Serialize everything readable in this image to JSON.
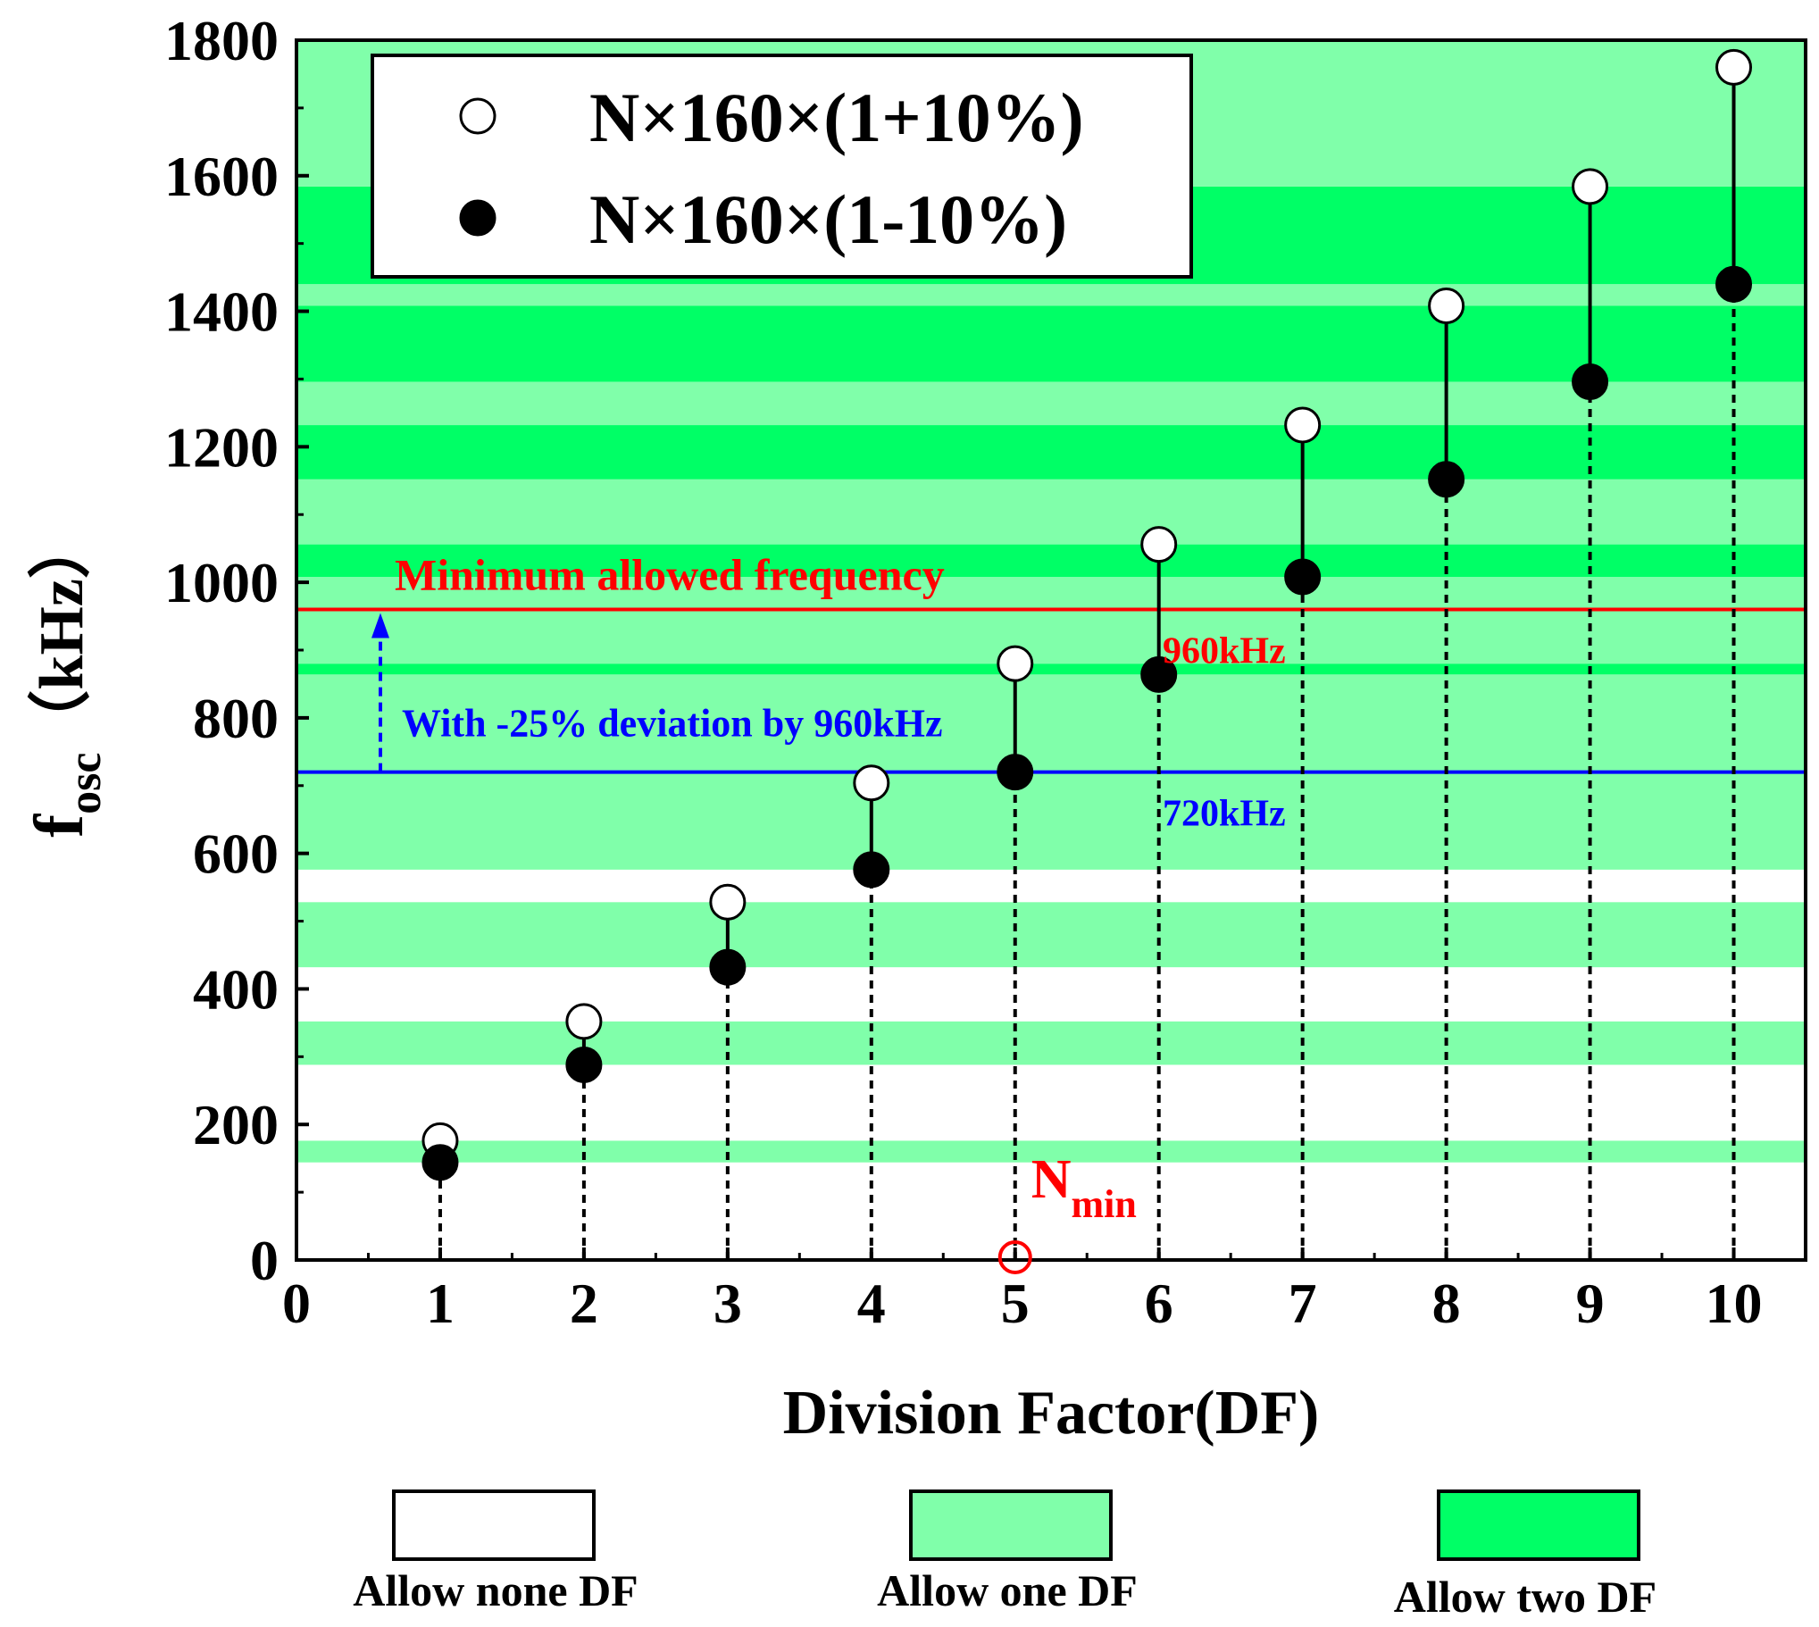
{
  "chart_data": {
    "type": "scatter",
    "title": "",
    "xlabel": "Division Factor(DF)",
    "ylabel_main": "f",
    "ylabel_sub": "osc",
    "ylabel_unit": "（kHz）",
    "xlim": [
      0,
      10.5
    ],
    "ylim": [
      0,
      1800
    ],
    "xticks": [
      0,
      1,
      2,
      3,
      4,
      5,
      6,
      7,
      8,
      9,
      10
    ],
    "yticks": [
      0,
      200,
      400,
      600,
      800,
      1000,
      1200,
      1400,
      1600,
      1800
    ],
    "x": [
      1,
      2,
      3,
      4,
      5,
      6,
      7,
      8,
      9,
      10
    ],
    "series": [
      {
        "name": "N×160×(1+10%)",
        "marker": "open-circle",
        "values": [
          176,
          352,
          528,
          704,
          880,
          1056,
          1232,
          1408,
          1584,
          1760
        ]
      },
      {
        "name": "N×160×(1-10%)",
        "marker": "filled-circle",
        "values": [
          144,
          288,
          432,
          576,
          720,
          864,
          1008,
          1152,
          1296,
          1440
        ]
      }
    ],
    "bands": [
      {
        "from": 144,
        "to": 176,
        "level": "one"
      },
      {
        "from": 288,
        "to": 352,
        "level": "one"
      },
      {
        "from": 432,
        "to": 528,
        "level": "one"
      },
      {
        "from": 576,
        "to": 720,
        "level": "one"
      },
      {
        "from": 720,
        "to": 864,
        "level": "one"
      },
      {
        "from": 864,
        "to": 880,
        "level": "two"
      },
      {
        "from": 880,
        "to": 1008,
        "level": "one"
      },
      {
        "from": 1008,
        "to": 1056,
        "level": "two"
      },
      {
        "from": 1056,
        "to": 1152,
        "level": "one"
      },
      {
        "from": 1152,
        "to": 1232,
        "level": "two"
      },
      {
        "from": 1232,
        "to": 1296,
        "level": "one"
      },
      {
        "from": 1296,
        "to": 1408,
        "level": "two"
      },
      {
        "from": 1408,
        "to": 1440,
        "level": "one"
      },
      {
        "from": 1440,
        "to": 1584,
        "level": "two"
      },
      {
        "from": 1584,
        "to": 1800,
        "level": "one"
      }
    ],
    "reference_lines": [
      {
        "value": 960,
        "label": "960kHz",
        "color": "#ff0000"
      },
      {
        "value": 720,
        "label": "720kHz",
        "color": "#0000ff"
      }
    ],
    "annotations": {
      "min_freq": "Minimum allowed frequency",
      "deviation": "With -25% deviation by 960kHz",
      "nmin_main": "N",
      "nmin_sub": "min",
      "nmin_x": 5
    },
    "band_legend": [
      {
        "key": "none",
        "label": "Allow none DF",
        "color": "#ffffff"
      },
      {
        "key": "one",
        "label": "Allow one DF",
        "color": "#80ffaa"
      },
      {
        "key": "two",
        "label": "Allow two DF",
        "color": "#00ff66"
      }
    ],
    "legend_position": "top-left"
  }
}
